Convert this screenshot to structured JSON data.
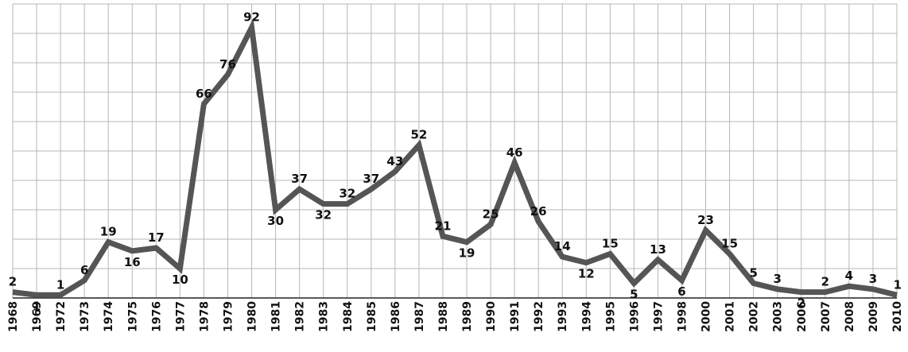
{
  "chart_data": {
    "type": "line",
    "title": "",
    "xlabel": "",
    "ylabel": "",
    "ylim": [
      0,
      100
    ],
    "grid": true,
    "legend": "none",
    "categories": [
      "1968",
      "1969",
      "1972",
      "1973",
      "1974",
      "1975",
      "1976",
      "1977",
      "1978",
      "1979",
      "1980",
      "1981",
      "1982",
      "1983",
      "1984",
      "1985",
      "1986",
      "1987",
      "1988",
      "1989",
      "1990",
      "1991",
      "1992",
      "1993",
      "1994",
      "1995",
      "1996",
      "1997",
      "1998",
      "2000",
      "2001",
      "2002",
      "2003",
      "2006",
      "2007",
      "2008",
      "2009",
      "2010"
    ],
    "series": [
      {
        "values": [
          2,
          1,
          1,
          6,
          19,
          16,
          17,
          10,
          66,
          76,
          92,
          30,
          37,
          32,
          32,
          37,
          43,
          52,
          21,
          19,
          25,
          46,
          26,
          14,
          12,
          15,
          5,
          13,
          6,
          23,
          15,
          5,
          3,
          2,
          2,
          4,
          3,
          1
        ],
        "color": "#555555"
      }
    ]
  }
}
